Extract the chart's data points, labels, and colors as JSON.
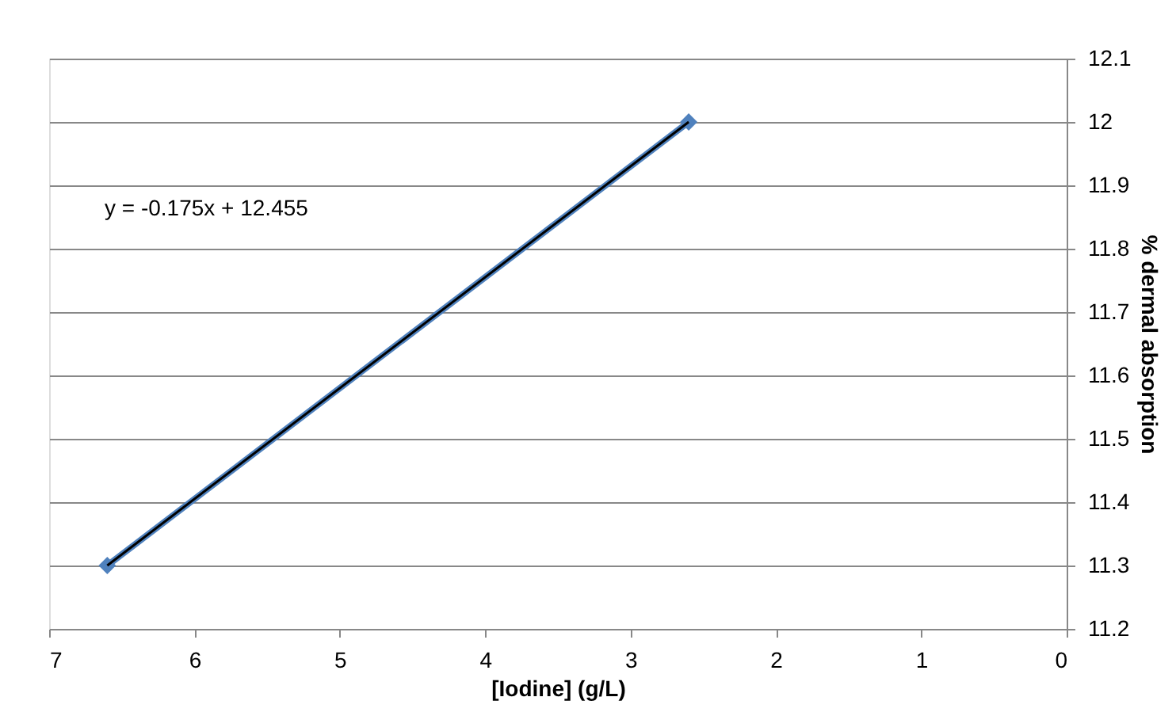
{
  "chart_data": {
    "type": "line",
    "xlabel": "[Iodine]  (g/L)",
    "ylabel": "% dermal absorption",
    "xlim": [
      7,
      0
    ],
    "xticks": [
      7,
      6,
      5,
      4,
      3,
      2,
      1,
      0
    ],
    "ylim": [
      11.2,
      12.1
    ],
    "yticks": [
      11.2,
      11.3,
      11.4,
      11.5,
      11.6,
      11.7,
      11.8,
      11.9,
      12,
      12.1
    ],
    "grid": "y",
    "marker": "diamond",
    "line_style": "solid",
    "x": [
      6.6,
      2.6
    ],
    "series": [
      {
        "type": "line",
        "color": "#4f81bd",
        "values": [
          11.3,
          12.0
        ]
      },
      {
        "type": "line",
        "color": "#000000",
        "x": [
          6.6,
          2.6
        ],
        "values": [
          11.3,
          12.0
        ],
        "marker": "none"
      }
    ],
    "annotations": [
      "y = -0.175x + 12.455"
    ]
  }
}
